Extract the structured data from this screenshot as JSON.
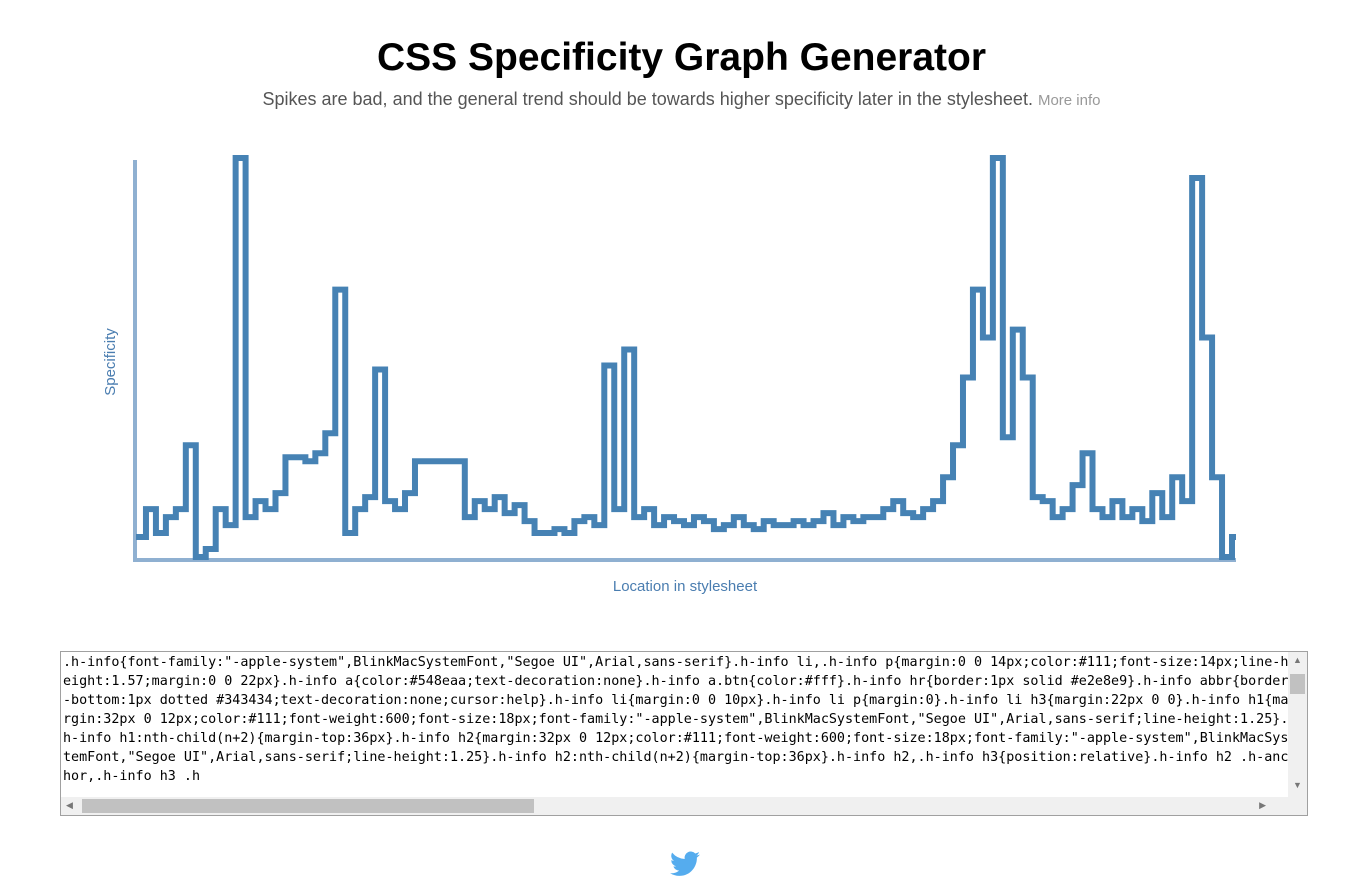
{
  "header": {
    "title": "CSS Specificity Graph Generator",
    "subtitle": "Spikes are bad, and the general trend should be towards higher specificity later in the stylesheet.",
    "more_info_link": "More info"
  },
  "chart_data": {
    "type": "line",
    "title": "",
    "xlabel": "Location in stylesheet",
    "ylabel": "Specificity",
    "grid": false,
    "legend": "none",
    "ylim": [
      0,
      100
    ],
    "color": "#4682b4",
    "axis_color": "#8fb0d1",
    "values": [
      5,
      12,
      6,
      10,
      12,
      28,
      0,
      2,
      12,
      8,
      100,
      10,
      14,
      12,
      16,
      25,
      25,
      24,
      26,
      31,
      67,
      6,
      12,
      15,
      47,
      14,
      12,
      16,
      24,
      24,
      24,
      24,
      24,
      10,
      14,
      12,
      15,
      11,
      13,
      9,
      6,
      6,
      7,
      6,
      9,
      10,
      8,
      48,
      12,
      52,
      10,
      12,
      8,
      10,
      9,
      8,
      10,
      9,
      7,
      8,
      10,
      8,
      7,
      9,
      8,
      8,
      9,
      8,
      9,
      11,
      8,
      10,
      9,
      10,
      10,
      12,
      14,
      11,
      10,
      12,
      14,
      20,
      28,
      45,
      67,
      55,
      100,
      30,
      57,
      45,
      15,
      14,
      10,
      12,
      18,
      26,
      12,
      10,
      14,
      10,
      12,
      9,
      16,
      10,
      20,
      14,
      95,
      55,
      20,
      0,
      5
    ]
  },
  "stylesheet_input": {
    "value": ".h-info{font-family:\"-apple-system\",BlinkMacSystemFont,\"Segoe UI\",Arial,sans-serif}.h-info li,.h-info p{margin:0 0 14px;color:#111;font-size:14px;line-height:1.57;margin:0 0 22px}.h-info a{color:#548eaa;text-decoration:none}.h-info a.btn{color:#fff}.h-info hr{border:1px solid #e2e8e9}.h-info abbr{border-bottom:1px dotted #343434;text-decoration:none;cursor:help}.h-info li{margin:0 0 10px}.h-info li p{margin:0}.h-info li h3{margin:22px 0 0}.h-info h1{margin:32px 0 12px;color:#111;font-weight:600;font-size:18px;font-family:\"-apple-system\",BlinkMacSystemFont,\"Segoe UI\",Arial,sans-serif;line-height:1.25}.h-info h1:nth-child(n+2){margin-top:36px}.h-info h2{margin:32px 0 12px;color:#111;font-weight:600;font-size:18px;font-family:\"-apple-system\",BlinkMacSystemFont,\"Segoe UI\",Arial,sans-serif;line-height:1.25}.h-info h2:nth-child(n+2){margin-top:36px}.h-info h2,.h-info h3{position:relative}.h-info h2 .h-anchor,.h-info h3 .h"
  },
  "footer": {
    "icon": "twitter-icon",
    "icon_color": "#55acee"
  }
}
